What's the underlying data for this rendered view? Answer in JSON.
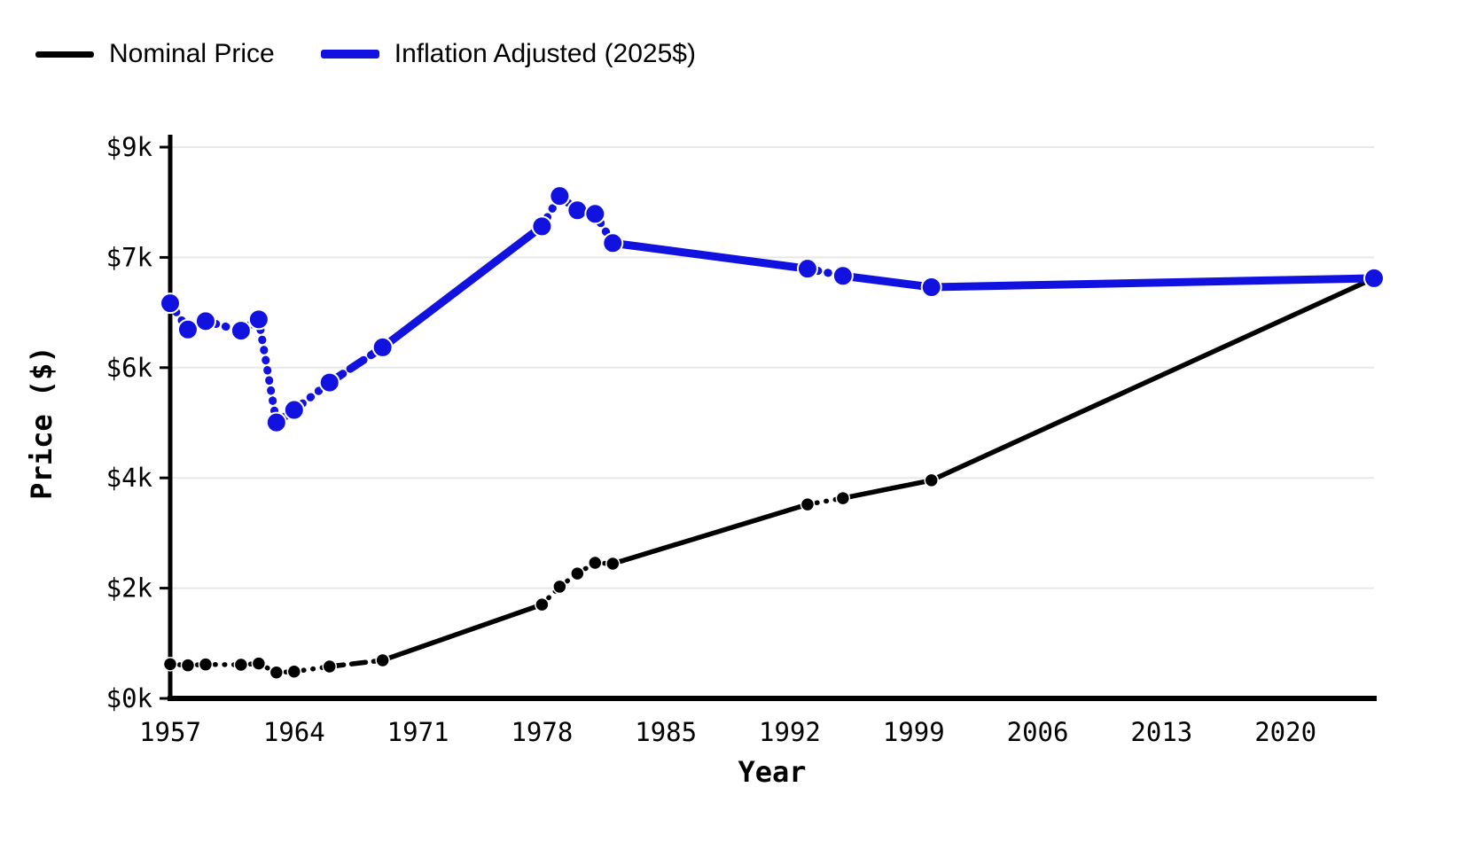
{
  "legend": {
    "items": [
      {
        "label": "Nominal Price",
        "color": "#000000"
      },
      {
        "label": "Inflation Adjusted (2025$)",
        "color": "#1212e0"
      }
    ]
  },
  "chart_data": {
    "type": "line",
    "title": "",
    "xlabel": "Year",
    "ylabel": "Price ($)",
    "legend_position": "top-left",
    "grid": true,
    "background": "#ffffff",
    "gridline_color": "#e8e8e8",
    "x_range": [
      1957,
      2025
    ],
    "y_range": [
      0,
      9250
    ],
    "x_tick_labels": [
      "1957",
      "1964",
      "1971",
      "1978",
      "1985",
      "1992",
      "1999",
      "2006",
      "2013",
      "2020"
    ],
    "x_tick_years": [
      1957,
      1964,
      1971,
      1978,
      1985,
      1992,
      1999,
      2006,
      2013,
      2020
    ],
    "y_tick_labels_top_to_bottom": [
      "$9k",
      "$7k",
      "$6k",
      "$4k",
      "$2k",
      "$0k"
    ],
    "x": [
      1957,
      1958,
      1959,
      1961,
      1962,
      1963,
      1964,
      1966,
      1969,
      1978,
      1979,
      1980,
      1981,
      1982,
      1993,
      1995,
      2000,
      2025
    ],
    "series": [
      {
        "name": "Nominal Price",
        "color": "#000000",
        "values": [
          575,
          555,
          570,
          565,
          585,
          435,
          450,
          535,
          640,
          1575,
          1875,
          2095,
          2275,
          2260,
          3255,
          3360,
          3660,
          7050
        ]
      },
      {
        "name": "Inflation Adjusted (2025$)",
        "color": "#1212e0",
        "values": [
          6630,
          6190,
          6330,
          6170,
          6360,
          4630,
          4840,
          5300,
          5890,
          7920,
          8430,
          8190,
          8130,
          7640,
          7210,
          7090,
          6900,
          7050
        ]
      }
    ]
  }
}
